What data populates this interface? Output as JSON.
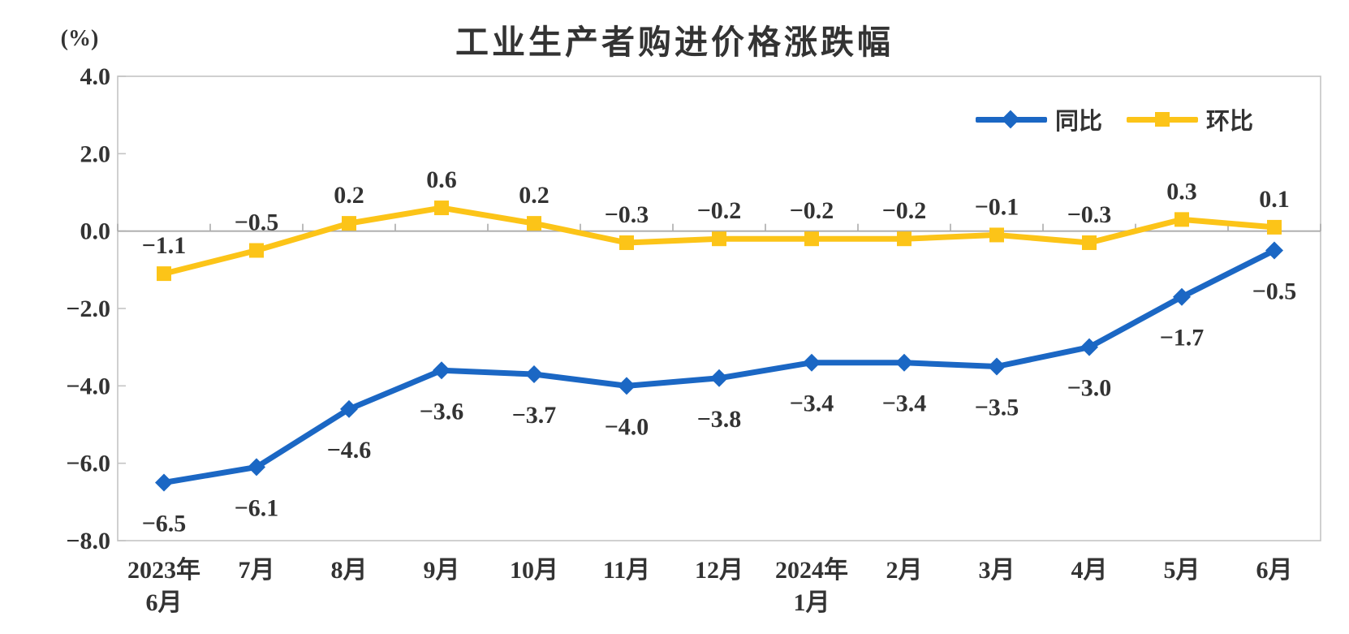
{
  "figure": {
    "title": "工业生产者购进价格涨跌幅",
    "y_axis_unit": "(%)"
  },
  "chart_data": {
    "type": "line",
    "title": "工业生产者购进价格涨跌幅",
    "xlabel": "",
    "ylabel": "(%)",
    "categories": [
      "2023年\n6月",
      "7月",
      "8月",
      "9月",
      "10月",
      "11月",
      "12月",
      "2024年\n1月",
      "2月",
      "3月",
      "4月",
      "5月",
      "6月"
    ],
    "series": [
      {
        "name": "同比",
        "marker": "diamond",
        "color": "#1B67C4",
        "label_position": "below",
        "values": [
          -6.5,
          -6.1,
          -4.6,
          -3.6,
          -3.7,
          -4.0,
          -3.8,
          -3.4,
          -3.4,
          -3.5,
          -3.0,
          -1.7,
          -0.5
        ]
      },
      {
        "name": "环比",
        "marker": "square",
        "color": "#FCC418",
        "label_position": "above",
        "values": [
          -1.1,
          -0.5,
          0.2,
          0.6,
          0.2,
          -0.3,
          -0.2,
          -0.2,
          -0.2,
          -0.1,
          -0.3,
          0.3,
          0.1
        ]
      }
    ],
    "ylim": [
      -8.0,
      4.0
    ],
    "ytick_step": 2.0,
    "ytick_labels": [
      "4.0",
      "2.0",
      "0.0",
      "-2.0",
      "-4.0",
      "-6.0",
      "-8.0"
    ],
    "data_labels": true,
    "grid": false,
    "legend_position": "top-right",
    "plot_border_color": "#C4C4C4",
    "zero_line_color": "#ABABAB",
    "text_color": "#333333"
  }
}
